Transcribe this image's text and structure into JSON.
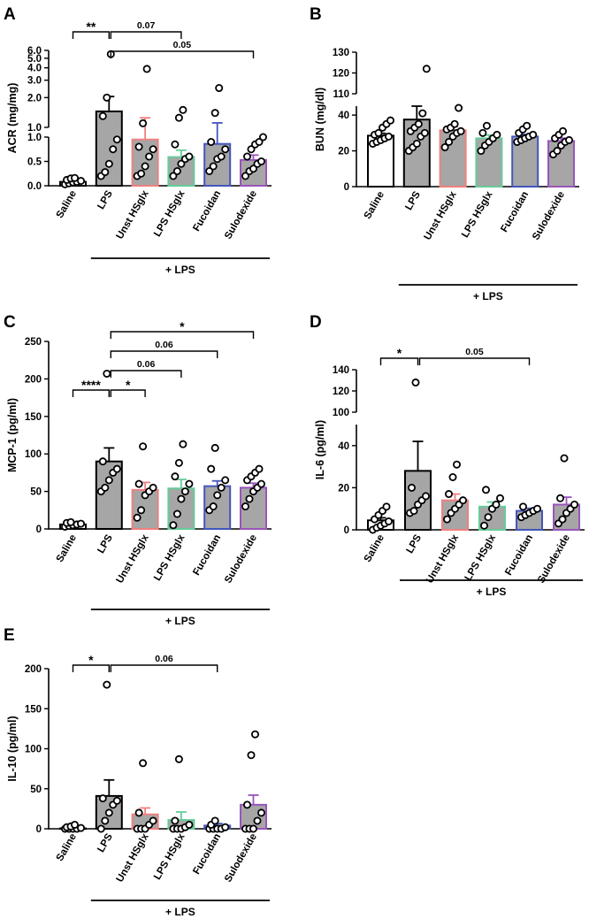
{
  "chart_data": [
    {
      "panel": "A",
      "type": "bar",
      "ylabel": "ACR (mg/mg)",
      "axis": "broken",
      "lower_segment": {
        "ylim": [
          0,
          1.0
        ],
        "ticks": [
          "0.0",
          "0.5",
          "1.0"
        ]
      },
      "upper_segment": {
        "scale": "log",
        "ticks": [
          "1.0",
          "2.0",
          "3.0",
          "4.0",
          "5.0",
          "6.0"
        ]
      },
      "categories": [
        "Saline",
        "LPS",
        "Unst HSglx",
        "LPS HSglx",
        "Fucoidan",
        "Sulodexide"
      ],
      "bar_fill": [
        "#ffffff",
        "#a6a6a6",
        "#a6a6a6",
        "#a6a6a6",
        "#a6a6a6",
        "#a6a6a6"
      ],
      "bar_edge": [
        "#000000",
        "#000000",
        "#f08080",
        "#66cc99",
        "#4455bb",
        "#9955bb"
      ],
      "means": [
        0.08,
        1.45,
        0.95,
        0.59,
        0.86,
        0.53
      ],
      "sem": [
        0.02,
        0.6,
        0.3,
        0.14,
        0.25,
        0.1
      ],
      "points": [
        [
          0.03,
          0.05,
          0.07,
          0.08,
          0.1,
          0.12,
          0.15,
          0.16
        ],
        [
          0.2,
          0.28,
          0.45,
          0.75,
          0.95,
          1.3,
          2.0,
          5.5
        ],
        [
          0.2,
          0.25,
          0.4,
          0.6,
          0.75,
          0.8,
          1.1,
          3.9
        ],
        [
          0.2,
          0.3,
          0.45,
          0.55,
          0.6,
          0.85,
          1.25,
          1.5
        ],
        [
          0.3,
          0.4,
          0.55,
          0.6,
          0.75,
          0.9,
          1.4,
          2.5
        ],
        [
          0.2,
          0.3,
          0.35,
          0.45,
          0.5,
          0.6,
          0.75,
          0.85,
          0.9,
          1.0
        ]
      ],
      "group_label": "+ LPS",
      "significance": [
        {
          "from": 0,
          "to": 1,
          "label": "**"
        },
        {
          "from": 1,
          "to": 3,
          "label": "0.07"
        },
        {
          "from": 1,
          "to": 5,
          "label": "0.05"
        }
      ]
    },
    {
      "panel": "B",
      "type": "bar",
      "ylabel": "BUN (mg/dl)",
      "axis": "broken",
      "lower_segment": {
        "ylim": [
          0,
          45
        ],
        "ticks": [
          "0",
          "20",
          "40"
        ]
      },
      "upper_segment": {
        "ylim": [
          110,
          130
        ],
        "ticks": [
          "110",
          "120",
          "130"
        ]
      },
      "categories": [
        "Saline",
        "LPS",
        "Unst HSglx",
        "LPS HSglx",
        "Fucoidan",
        "Sulodexide"
      ],
      "bar_fill": [
        "#ffffff",
        "#a6a6a6",
        "#a6a6a6",
        "#a6a6a6",
        "#a6a6a6",
        "#a6a6a6"
      ],
      "bar_edge": [
        "#000000",
        "#000000",
        "#f08080",
        "#66cc99",
        "#4455bb",
        "#9955bb"
      ],
      "means": [
        28.5,
        37.5,
        31.5,
        27.0,
        28.0,
        25.5
      ],
      "sem": [
        1.3,
        8.5,
        2.0,
        1.8,
        1.2,
        1.6
      ],
      "points": [
        [
          24,
          25,
          26,
          27,
          28,
          29,
          30,
          33,
          35,
          37
        ],
        [
          20,
          22,
          24,
          28,
          30,
          31,
          33,
          35,
          41,
          122
        ],
        [
          22,
          25,
          28,
          30,
          31,
          32,
          33,
          35,
          44
        ],
        [
          20,
          23,
          25,
          27,
          29,
          30,
          34
        ],
        [
          25,
          26,
          27,
          28,
          29,
          30,
          32,
          34
        ],
        [
          18,
          20,
          23,
          25,
          26,
          27,
          29,
          31
        ]
      ],
      "group_label": "+ LPS",
      "significance": []
    },
    {
      "panel": "C",
      "type": "bar",
      "ylabel": "MCP-1 (pg/ml)",
      "ylim": [
        0,
        250
      ],
      "ticks": [
        "0",
        "50",
        "100",
        "150",
        "200",
        "250"
      ],
      "categories": [
        "Saline",
        "LPS",
        "Unst HSglx",
        "LPS HSglx",
        "Fucoidan",
        "Sulodexide"
      ],
      "bar_fill": [
        "#ffffff",
        "#a6a6a6",
        "#a6a6a6",
        "#a6a6a6",
        "#a6a6a6",
        "#a6a6a6"
      ],
      "bar_edge": [
        "#000000",
        "#000000",
        "#f08080",
        "#66cc99",
        "#4455bb",
        "#9955bb"
      ],
      "means": [
        6,
        90,
        52,
        54,
        57,
        55
      ],
      "sem": [
        1,
        18,
        10,
        12,
        7,
        6
      ],
      "points": [
        [
          3,
          4,
          5,
          6,
          7,
          8,
          9
        ],
        [
          50,
          55,
          65,
          75,
          80,
          90,
          207
        ],
        [
          15,
          25,
          45,
          50,
          55,
          60,
          110
        ],
        [
          5,
          20,
          40,
          50,
          60,
          70,
          88,
          113
        ],
        [
          25,
          30,
          45,
          55,
          65,
          80,
          108
        ],
        [
          30,
          40,
          50,
          55,
          60,
          65,
          70,
          75,
          80
        ]
      ],
      "group_label": "+ LPS",
      "significance": [
        {
          "from": 0,
          "to": 1,
          "label": "****"
        },
        {
          "from": 1,
          "to": 2,
          "label": "*"
        },
        {
          "from": 1,
          "to": 3,
          "label": "0.06"
        },
        {
          "from": 1,
          "to": 4,
          "label": "0.06"
        },
        {
          "from": 1,
          "to": 5,
          "label": "*"
        }
      ]
    },
    {
      "panel": "D",
      "type": "bar",
      "ylabel": "IL-6 (pg/ml)",
      "axis": "broken",
      "lower_segment": {
        "ylim": [
          0,
          50
        ],
        "ticks": [
          "0",
          "20",
          "40"
        ]
      },
      "upper_segment": {
        "ylim": [
          100,
          140
        ],
        "ticks": [
          "100",
          "120",
          "140"
        ]
      },
      "categories": [
        "Saline",
        "LPS",
        "Unst HSglx",
        "LPS HSglx",
        "Fucoidan",
        "Sulodexide"
      ],
      "bar_fill": [
        "#ffffff",
        "#a6a6a6",
        "#a6a6a6",
        "#a6a6a6",
        "#a6a6a6",
        "#a6a6a6"
      ],
      "bar_edge": [
        "#000000",
        "#000000",
        "#f08080",
        "#66cc99",
        "#4455bb",
        "#9955bb"
      ],
      "means": [
        4.5,
        28,
        14,
        11,
        9,
        12
      ],
      "sem": [
        1.2,
        14,
        3,
        2.2,
        1.2,
        3.5
      ],
      "points": [
        [
          0,
          1,
          2,
          3,
          4,
          5,
          7,
          9,
          11
        ],
        [
          8,
          9,
          12,
          14,
          16,
          20,
          128
        ],
        [
          5,
          8,
          10,
          12,
          14,
          17,
          25,
          31
        ],
        [
          2,
          6,
          10,
          12,
          15,
          19
        ],
        [
          6,
          7,
          8,
          9,
          10,
          11
        ],
        [
          3,
          5,
          8,
          10,
          12,
          15,
          34
        ]
      ],
      "group_label": "+ LPS",
      "significance": [
        {
          "from": 0,
          "to": 1,
          "label": "*"
        },
        {
          "from": 1,
          "to": 4,
          "label": "0.05"
        }
      ]
    },
    {
      "panel": "E",
      "type": "bar",
      "ylabel": "IL-10 (pg/ml)",
      "ylim": [
        0,
        200
      ],
      "ticks": [
        "0",
        "50",
        "100",
        "150",
        "200"
      ],
      "categories": [
        "Saline",
        "LPS",
        "Unst HSglx",
        "LPS HSglx",
        "Fucoidan",
        "Sulodexide"
      ],
      "bar_fill": [
        "#ffffff",
        "#a6a6a6",
        "#a6a6a6",
        "#a6a6a6",
        "#a6a6a6",
        "#a6a6a6"
      ],
      "bar_edge": [
        "#000000",
        "#000000",
        "#f08080",
        "#66cc99",
        "#4455bb",
        "#9955bb"
      ],
      "means": [
        0.5,
        41,
        18,
        11,
        4,
        30
      ],
      "sem": [
        0.3,
        20,
        8,
        10,
        2.5,
        12
      ],
      "points": [
        [
          0,
          0,
          0,
          0,
          1,
          2,
          3,
          5
        ],
        [
          0,
          10,
          20,
          30,
          35,
          38,
          180
        ],
        [
          0,
          0,
          0,
          5,
          10,
          20,
          82
        ],
        [
          0,
          0,
          0,
          2,
          5,
          10,
          87
        ],
        [
          0,
          0,
          0,
          0,
          2,
          5,
          10
        ],
        [
          0,
          0,
          0,
          10,
          20,
          30,
          92,
          118
        ]
      ],
      "group_label": "+ LPS",
      "significance": [
        {
          "from": 0,
          "to": 1,
          "label": "*"
        },
        {
          "from": 1,
          "to": 4,
          "label": "0.06"
        }
      ]
    }
  ]
}
